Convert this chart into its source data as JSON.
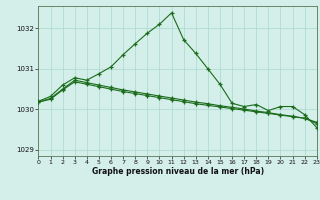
{
  "title": "Graphe pression niveau de la mer (hPa)",
  "bg": "#d4eeea",
  "grid_color": "#a8d8cc",
  "lc": "#1a6b1a",
  "xlim": [
    0,
    23
  ],
  "ylim": [
    1028.85,
    1032.55
  ],
  "yticks": [
    1029,
    1030,
    1031,
    1032
  ],
  "xticks": [
    0,
    1,
    2,
    3,
    4,
    5,
    6,
    7,
    8,
    9,
    10,
    11,
    12,
    13,
    14,
    15,
    16,
    17,
    18,
    19,
    20,
    21,
    22,
    23
  ],
  "line1_x": [
    0,
    1,
    2,
    3,
    4,
    5,
    6,
    7,
    8,
    9,
    10,
    11,
    12,
    13,
    14,
    15,
    16,
    17,
    18,
    19,
    20,
    21,
    22,
    23
  ],
  "line1_y": [
    1030.2,
    1030.32,
    1030.6,
    1030.78,
    1030.72,
    1030.88,
    1031.05,
    1031.35,
    1031.62,
    1031.88,
    1032.1,
    1032.38,
    1031.72,
    1031.38,
    1031.0,
    1030.62,
    1030.15,
    1030.07,
    1030.12,
    1029.97,
    1030.07,
    1030.07,
    1029.87,
    1029.55
  ],
  "line2_x": [
    0,
    1,
    2,
    3,
    4,
    5,
    6,
    7,
    8,
    9,
    10,
    11,
    12,
    13,
    14,
    15,
    16,
    17,
    18,
    19,
    20,
    21,
    22,
    23
  ],
  "line2_y": [
    1030.18,
    1030.25,
    1030.48,
    1030.68,
    1030.62,
    1030.56,
    1030.5,
    1030.44,
    1030.39,
    1030.34,
    1030.29,
    1030.24,
    1030.19,
    1030.14,
    1030.1,
    1030.06,
    1030.02,
    1029.98,
    1029.94,
    1029.9,
    1029.86,
    1029.82,
    1029.78,
    1029.68
  ],
  "line3_x": [
    0,
    1,
    2,
    3,
    4,
    5,
    6,
    7,
    8,
    9,
    10,
    11,
    12,
    13,
    14,
    15,
    16,
    17,
    18,
    19,
    20,
    21,
    22,
    23
  ],
  "line3_y": [
    1030.18,
    1030.27,
    1030.5,
    1030.72,
    1030.66,
    1030.6,
    1030.54,
    1030.48,
    1030.43,
    1030.38,
    1030.33,
    1030.28,
    1030.23,
    1030.18,
    1030.14,
    1030.09,
    1030.05,
    1030.01,
    1029.96,
    1029.92,
    1029.87,
    1029.83,
    1029.78,
    1029.65
  ]
}
